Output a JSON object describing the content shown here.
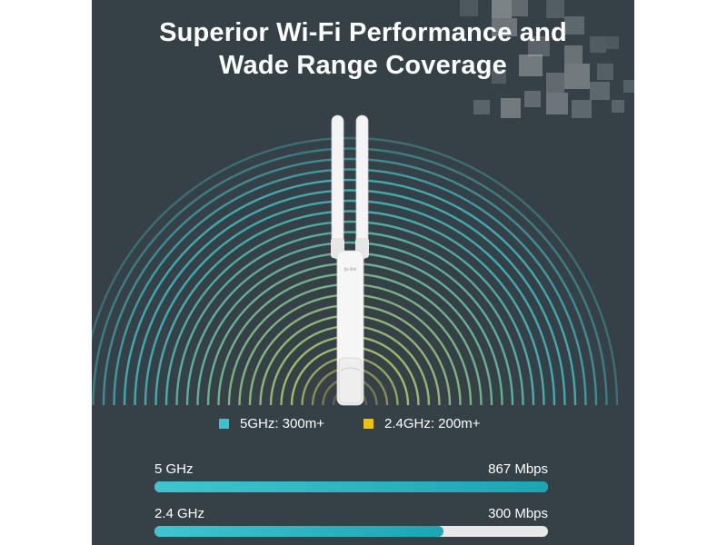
{
  "title": {
    "line1": "Superior Wi-Fi Performance and",
    "line2": "Wade Range Coverage"
  },
  "device": {
    "logo_text": "tp-link"
  },
  "legend": [
    {
      "label": "5GHz: 300m+",
      "color": "#36c3cf"
    },
    {
      "label": "2.4GHz: 200m+",
      "color": "#f2c200"
    }
  ],
  "speeds": [
    {
      "band": "5 GHz",
      "value": "867 Mbps",
      "fill": 1.0
    },
    {
      "band": "2.4 GHz",
      "value": "300 Mbps",
      "fill": 0.735
    }
  ],
  "colors": {
    "background": "#364147",
    "ring_outer": "#3fb9c4",
    "ring_inner": "#d9d54a",
    "bar_fill": "#21aab7",
    "bar_track": "#e8e8e8"
  }
}
